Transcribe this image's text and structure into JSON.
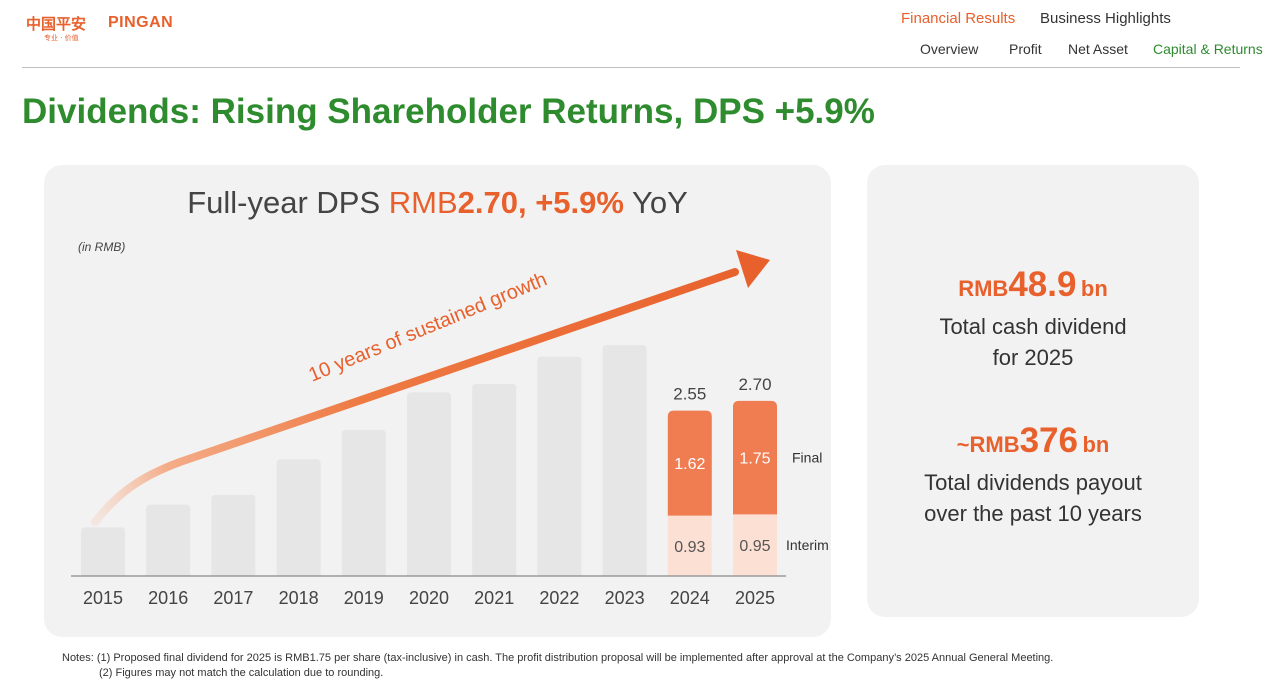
{
  "logo": {
    "cn": "中国平安",
    "en": "PINGAN",
    "sub": "专业 · 价值"
  },
  "nav": {
    "top": [
      {
        "label": "Financial Results",
        "active": true
      },
      {
        "label": "Business Highlights",
        "active": false
      }
    ],
    "sub": [
      {
        "label": "Overview",
        "active": false
      },
      {
        "label": "Profit",
        "active": false
      },
      {
        "label": "Net Asset",
        "active": false
      },
      {
        "label": "Capital & Returns",
        "active": true
      }
    ]
  },
  "page_title": "Dividends: Rising Shareholder Returns, DPS +5.9%",
  "chart_title": {
    "prefix": "Full-year DPS ",
    "currency": "RMB",
    "value": "2.70, +5.9%",
    "suffix": " YoY"
  },
  "unit_note": "(in RMB)",
  "arrow_label": "10 years of sustained growth",
  "chart_data": {
    "type": "bar",
    "categories": [
      "2015",
      "2016",
      "2017",
      "2018",
      "2019",
      "2020",
      "2021",
      "2022",
      "2023",
      "2024",
      "2025"
    ],
    "values": [
      0.75,
      1.1,
      1.25,
      1.8,
      2.25,
      2.83,
      2.96,
      3.38,
      3.56,
      null,
      null
    ],
    "stacked": [
      {
        "year": "2024",
        "interim": 0.93,
        "final": 1.62,
        "total": 2.55
      },
      {
        "year": "2025",
        "interim": 0.95,
        "final": 1.75,
        "total": 2.7
      }
    ],
    "series_labels": {
      "final": "Final",
      "interim": "Interim"
    },
    "colors": {
      "final": "#f07c52",
      "interim": "#fde0d4",
      "other": "#e6e6e6",
      "accent": "#e8602c"
    },
    "ylim": [
      0,
      3.7
    ]
  },
  "stats": [
    {
      "currency": "RMB",
      "value": "48.9",
      "suffix": "bn",
      "desc": [
        "Total cash dividend",
        "for 2025"
      ]
    },
    {
      "currency": "~RMB",
      "value": "376",
      "suffix": "bn",
      "desc": [
        "Total dividends payout",
        "over the past 10 years"
      ]
    }
  ],
  "notes": [
    "Notes: (1) Proposed final dividend for 2025 is RMB1.75 per share (tax-inclusive) in cash. The profit distribution proposal will be implemented after approval at the Company’s 2025 Annual General Meeting.",
    "(2) Figures may not match the calculation due to rounding."
  ]
}
